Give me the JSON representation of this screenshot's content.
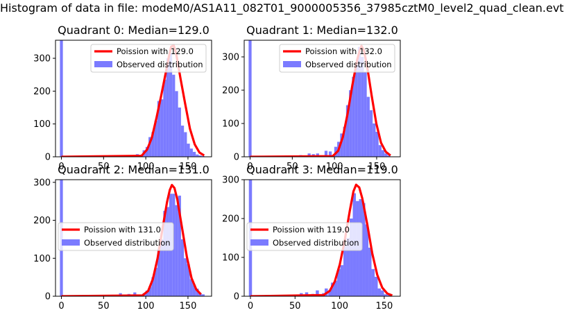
{
  "suptitle": "Histogram of data in file: modeM0/AS1A11_082T01_9000005356_37985cztM0_level2_quad_clean.evt",
  "colors": {
    "hist": "#7b7bff",
    "fit": "#ff0000"
  },
  "chart_data": [
    {
      "type": "bar",
      "title": "Quadrant 0: Median=129.0",
      "median": 129.0,
      "xlim": [
        -7,
        178
      ],
      "ylim": [
        0,
        355
      ],
      "xticks": [
        0,
        50,
        100,
        150
      ],
      "yticks": [
        0,
        100,
        200,
        300
      ],
      "legend": {
        "placement": "upper-right",
        "entries": [
          "Poission with 129.0",
          "Observed distribution"
        ]
      },
      "hist": {
        "bin_width": 3.5,
        "bins": [
          {
            "x": 0,
            "y": 355
          },
          {
            "x": 70,
            "y": 5
          },
          {
            "x": 80,
            "y": 4
          },
          {
            "x": 90,
            "y": 8
          },
          {
            "x": 95,
            "y": 6
          },
          {
            "x": 98,
            "y": 20
          },
          {
            "x": 101.5,
            "y": 30
          },
          {
            "x": 105,
            "y": 60
          },
          {
            "x": 108.5,
            "y": 75
          },
          {
            "x": 112,
            "y": 110
          },
          {
            "x": 115.5,
            "y": 170
          },
          {
            "x": 119,
            "y": 175
          },
          {
            "x": 122.5,
            "y": 235
          },
          {
            "x": 126,
            "y": 300
          },
          {
            "x": 129.5,
            "y": 315
          },
          {
            "x": 133,
            "y": 250
          },
          {
            "x": 136.5,
            "y": 200
          },
          {
            "x": 140,
            "y": 150
          },
          {
            "x": 143.5,
            "y": 95
          },
          {
            "x": 147,
            "y": 75
          },
          {
            "x": 150.5,
            "y": 40
          },
          {
            "x": 154,
            "y": 25
          },
          {
            "x": 157.5,
            "y": 15
          },
          {
            "x": 161,
            "y": 7
          },
          {
            "x": 164.5,
            "y": 4
          },
          {
            "x": 168,
            "y": 2
          }
        ]
      },
      "fit": {
        "x": [
          0,
          95,
          101.6,
          107.2,
          112.8,
          118.4,
          124,
          127,
          130,
          133,
          136,
          141.2,
          146.8,
          152.4,
          158,
          163.6,
          169.2
        ],
        "y": [
          0,
          3,
          22,
          58,
          120,
          188,
          260,
          300,
          335,
          340,
          315,
          238,
          160,
          85,
          38,
          13,
          4
        ]
      }
    },
    {
      "type": "bar",
      "title": "Quadrant 1: Median=132.0",
      "median": 132.0,
      "xlim": [
        -7,
        178
      ],
      "ylim": [
        0,
        350
      ],
      "xticks": [
        0,
        50,
        100,
        150
      ],
      "yticks": [
        0,
        100,
        200,
        300
      ],
      "legend": {
        "placement": "upper-right",
        "entries": [
          "Poission with 132.0",
          "Observed distribution"
        ]
      },
      "hist": {
        "bin_width": 3.5,
        "bins": [
          {
            "x": 0,
            "y": 350
          },
          {
            "x": 45,
            "y": 2
          },
          {
            "x": 60,
            "y": 5
          },
          {
            "x": 70,
            "y": 10
          },
          {
            "x": 75,
            "y": 8
          },
          {
            "x": 80,
            "y": 10
          },
          {
            "x": 90,
            "y": 18
          },
          {
            "x": 95,
            "y": 16
          },
          {
            "x": 98,
            "y": 5
          },
          {
            "x": 101.5,
            "y": 30
          },
          {
            "x": 105,
            "y": 45
          },
          {
            "x": 108.5,
            "y": 70
          },
          {
            "x": 112,
            "y": 90
          },
          {
            "x": 115.5,
            "y": 155
          },
          {
            "x": 119,
            "y": 200
          },
          {
            "x": 122.5,
            "y": 240
          },
          {
            "x": 126,
            "y": 275
          },
          {
            "x": 129.5,
            "y": 330
          },
          {
            "x": 133,
            "y": 300
          },
          {
            "x": 136.5,
            "y": 255
          },
          {
            "x": 140,
            "y": 180
          },
          {
            "x": 143.5,
            "y": 140
          },
          {
            "x": 147,
            "y": 100
          },
          {
            "x": 150.5,
            "y": 75
          },
          {
            "x": 154,
            "y": 35
          },
          {
            "x": 157.5,
            "y": 20
          },
          {
            "x": 161,
            "y": 10
          },
          {
            "x": 164.5,
            "y": 4
          }
        ]
      },
      "fit": {
        "x": [
          0,
          98,
          104.4,
          110,
          115.6,
          121.2,
          126.8,
          130,
          132,
          135,
          138.5,
          144,
          149.6,
          155.2,
          160.8,
          166.4
        ],
        "y": [
          0,
          2,
          18,
          60,
          130,
          215,
          290,
          320,
          333,
          318,
          275,
          185,
          100,
          42,
          15,
          4
        ]
      }
    },
    {
      "type": "bar",
      "title": "Quadrant 2: Median=131.0",
      "median": 131.0,
      "xlim": [
        -7,
        178
      ],
      "ylim": [
        0,
        307
      ],
      "xticks": [
        0,
        50,
        100,
        150
      ],
      "yticks": [
        0,
        100,
        200,
        300
      ],
      "legend": {
        "placement": "center-left",
        "entries": [
          "Poission with 131.0",
          "Observed distribution"
        ]
      },
      "hist": {
        "bin_width": 3.5,
        "bins": [
          {
            "x": 0,
            "y": 307
          },
          {
            "x": 40,
            "y": 2
          },
          {
            "x": 60,
            "y": 4
          },
          {
            "x": 70,
            "y": 8
          },
          {
            "x": 80,
            "y": 6
          },
          {
            "x": 87,
            "y": 10
          },
          {
            "x": 94,
            "y": 3
          },
          {
            "x": 98,
            "y": 8
          },
          {
            "x": 101.5,
            "y": 15
          },
          {
            "x": 105,
            "y": 25
          },
          {
            "x": 108.5,
            "y": 50
          },
          {
            "x": 112,
            "y": 75
          },
          {
            "x": 115.5,
            "y": 125
          },
          {
            "x": 119,
            "y": 150
          },
          {
            "x": 122.5,
            "y": 225
          },
          {
            "x": 126,
            "y": 235
          },
          {
            "x": 129.5,
            "y": 270
          },
          {
            "x": 133,
            "y": 270
          },
          {
            "x": 136.5,
            "y": 240
          },
          {
            "x": 140,
            "y": 265
          },
          {
            "x": 143.5,
            "y": 150
          },
          {
            "x": 147,
            "y": 100
          },
          {
            "x": 150.5,
            "y": 85
          },
          {
            "x": 154,
            "y": 45
          },
          {
            "x": 157.5,
            "y": 30
          },
          {
            "x": 161,
            "y": 20
          },
          {
            "x": 164.5,
            "y": 8
          },
          {
            "x": 168,
            "y": 5
          }
        ]
      },
      "fit": {
        "x": [
          0,
          96,
          102.8,
          108.4,
          114,
          119.6,
          125.2,
          128.5,
          131,
          134,
          137.4,
          143,
          148.6,
          154.2,
          159.8,
          165.4
        ],
        "y": [
          0,
          2,
          14,
          45,
          100,
          175,
          248,
          280,
          293,
          285,
          255,
          180,
          105,
          48,
          18,
          5
        ]
      }
    },
    {
      "type": "bar",
      "title": "Quadrant 3: Median=119.0",
      "median": 119.0,
      "xlim": [
        -7,
        168
      ],
      "ylim": [
        0,
        300
      ],
      "xticks": [
        0,
        50,
        100,
        150
      ],
      "yticks": [
        0,
        100,
        200,
        300
      ],
      "legend": {
        "placement": "center-left",
        "entries": [
          "Poission with 119.0",
          "Observed distribution"
        ]
      },
      "hist": {
        "bin_width": 3.5,
        "bins": [
          {
            "x": 0,
            "y": 300
          },
          {
            "x": 45,
            "y": 3
          },
          {
            "x": 57,
            "y": 8
          },
          {
            "x": 63,
            "y": 10
          },
          {
            "x": 70,
            "y": 6
          },
          {
            "x": 75,
            "y": 15
          },
          {
            "x": 82,
            "y": 8
          },
          {
            "x": 85,
            "y": 20
          },
          {
            "x": 89,
            "y": 15
          },
          {
            "x": 92,
            "y": 35
          },
          {
            "x": 95.5,
            "y": 40
          },
          {
            "x": 99,
            "y": 70
          },
          {
            "x": 102.5,
            "y": 80
          },
          {
            "x": 106,
            "y": 130
          },
          {
            "x": 109.5,
            "y": 150
          },
          {
            "x": 113,
            "y": 200
          },
          {
            "x": 116.5,
            "y": 265
          },
          {
            "x": 120,
            "y": 245
          },
          {
            "x": 123.5,
            "y": 250
          },
          {
            "x": 127,
            "y": 240
          },
          {
            "x": 130.5,
            "y": 185
          },
          {
            "x": 134,
            "y": 125
          },
          {
            "x": 137.5,
            "y": 70
          },
          {
            "x": 141,
            "y": 50
          },
          {
            "x": 144.5,
            "y": 20
          },
          {
            "x": 148,
            "y": 15
          },
          {
            "x": 151.5,
            "y": 5
          },
          {
            "x": 155,
            "y": 3
          }
        ]
      },
      "fit": {
        "x": [
          0,
          82,
          89,
          94.6,
          100.2,
          105.8,
          111.4,
          115.5,
          118.5,
          122,
          125.4,
          131,
          136.6,
          142.2,
          147.8,
          153.4,
          159
        ],
        "y": [
          0,
          3,
          14,
          38,
          82,
          145,
          220,
          270,
          287,
          280,
          252,
          185,
          110,
          55,
          22,
          7,
          2
        ]
      }
    }
  ]
}
